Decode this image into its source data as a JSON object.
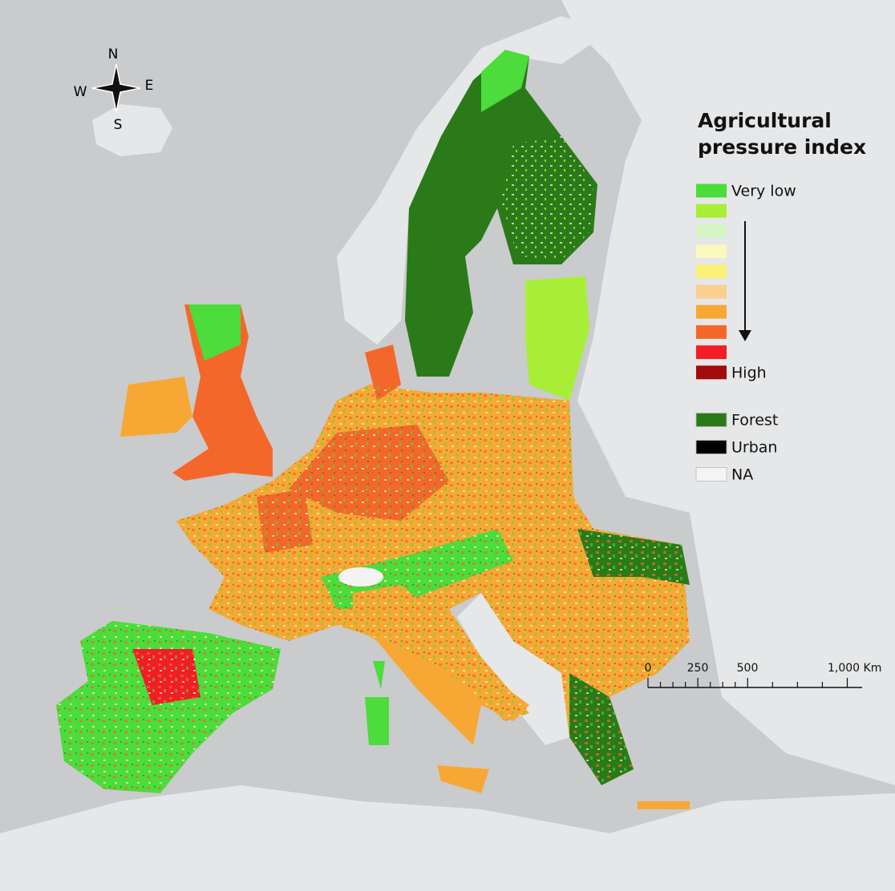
{
  "compass": {
    "north": "N",
    "east": "E",
    "south": "S",
    "west": "W"
  },
  "legend": {
    "title": "Agricultural pressure index",
    "classes": [
      {
        "color": "#4cdc3c",
        "label": "Very low"
      },
      {
        "color": "#a8ee36"
      },
      {
        "color": "#d6f5c6"
      },
      {
        "color": "#fbf8c0"
      },
      {
        "color": "#fbf27a"
      },
      {
        "color": "#fbd08e"
      },
      {
        "color": "#f7a834"
      },
      {
        "color": "#f3682a"
      },
      {
        "color": "#f41c26"
      },
      {
        "color": "#a20c0c",
        "label": "High"
      }
    ],
    "other": [
      {
        "color": "#2b7a19",
        "label": "Forest"
      },
      {
        "color": "#000000",
        "label": "Urban"
      },
      {
        "color": "#f4f4f4",
        "label": "NA"
      }
    ]
  },
  "scale_bar": {
    "labels": [
      "0",
      "250",
      "500",
      "1,000 Km"
    ]
  }
}
